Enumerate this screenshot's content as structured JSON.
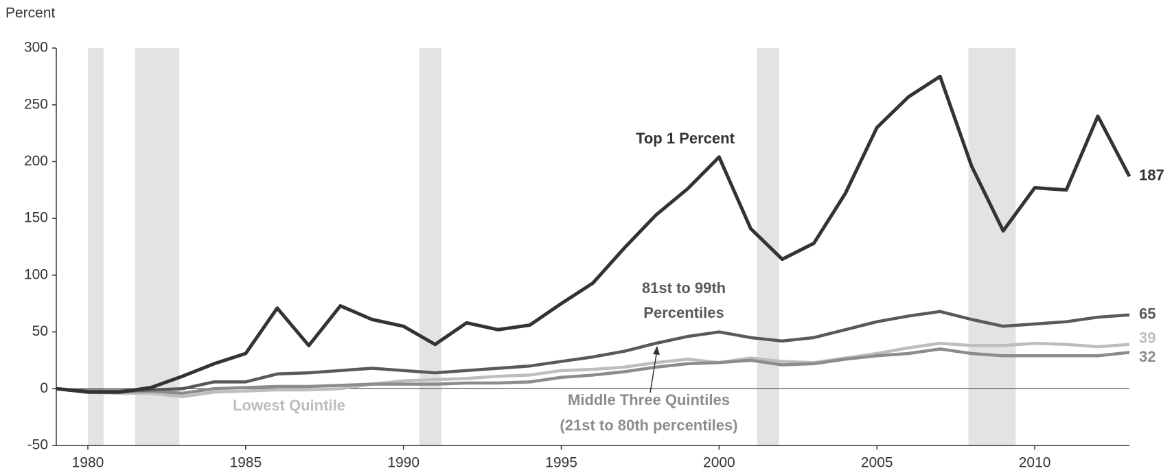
{
  "chart_data": {
    "type": "line",
    "y_axis_label": "Percent",
    "x": [
      1979,
      1980,
      1981,
      1982,
      1983,
      1984,
      1985,
      1986,
      1987,
      1988,
      1989,
      1990,
      1991,
      1992,
      1993,
      1994,
      1995,
      1996,
      1997,
      1998,
      1999,
      2000,
      2001,
      2002,
      2003,
      2004,
      2005,
      2006,
      2007,
      2008,
      2009,
      2010,
      2011,
      2012,
      2013
    ],
    "xlim": [
      1979,
      2013
    ],
    "xticks": [
      1980,
      1985,
      1990,
      1995,
      2000,
      2005,
      2010
    ],
    "ylim": [
      -50,
      300
    ],
    "yticks": [
      -50,
      0,
      50,
      100,
      150,
      200,
      250,
      300
    ],
    "recessions": [
      [
        1980,
        1980.5
      ],
      [
        1981.5,
        1982.9
      ],
      [
        1990.5,
        1991.2
      ],
      [
        2001.2,
        2001.9
      ],
      [
        2007.9,
        2009.4
      ]
    ],
    "recession_color": "#e3e3e3",
    "series": [
      {
        "label": [
          "Top 1 Percent"
        ],
        "color": "#333333",
        "values": [
          0,
          -3,
          -3,
          1,
          11,
          22,
          31,
          71,
          38,
          73,
          61,
          55,
          39,
          58,
          52,
          56,
          75,
          93,
          124,
          153,
          176,
          204,
          141,
          114,
          128,
          172,
          230,
          257,
          275,
          196,
          139,
          177,
          175,
          240,
          187
        ]
      },
      {
        "label": [
          "81st to 99th",
          "Percentiles"
        ],
        "color": "#595959",
        "values": [
          0,
          -2,
          -2,
          -1,
          0,
          6,
          6,
          13,
          14,
          16,
          18,
          16,
          14,
          16,
          18,
          20,
          24,
          28,
          33,
          40,
          46,
          50,
          45,
          42,
          45,
          52,
          59,
          64,
          68,
          61,
          55,
          57,
          59,
          63,
          65
        ]
      },
      {
        "label": [
          "Middle Three Quintiles",
          "(21st to 80th percentiles)"
        ],
        "color": "#8c8c8c",
        "values": [
          0,
          -3,
          -3,
          -2,
          -4,
          0,
          1,
          2,
          2,
          3,
          4,
          4,
          4,
          5,
          5,
          6,
          10,
          12,
          15,
          19,
          22,
          23,
          25,
          21,
          22,
          26,
          29,
          31,
          35,
          31,
          29,
          29,
          29,
          29,
          32
        ]
      },
      {
        "label": [
          "Lowest Quintile"
        ],
        "color": "#bdbdbd",
        "values": [
          0,
          -3,
          -4,
          -4,
          -7,
          -3,
          -2,
          -1,
          -1,
          0,
          4,
          7,
          8,
          9,
          11,
          12,
          16,
          17,
          19,
          23,
          26,
          23,
          27,
          24,
          23,
          27,
          31,
          36,
          40,
          38,
          38,
          40,
          39,
          37,
          39
        ]
      }
    ]
  }
}
